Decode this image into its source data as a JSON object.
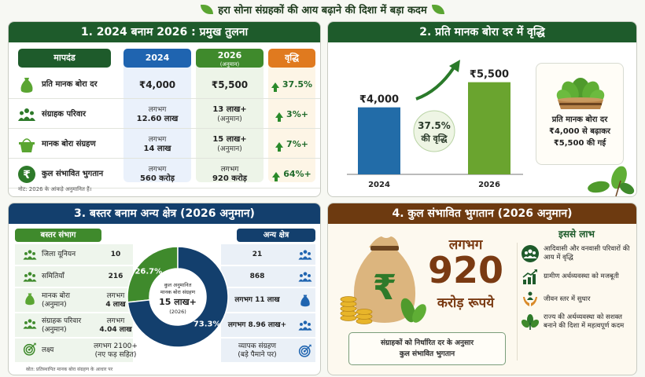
{
  "subtitle": "हरा सोना संग्रहकों की आय बढ़ाने की दिशा में बड़ा कदम",
  "colors": {
    "green_dark": "#1e5b2b",
    "blue": "#1f64b0",
    "green": "#3f8a2c",
    "orange": "#e07a1f",
    "navy": "#133f6d",
    "brown": "#6d3a10",
    "bar_2024": "#226ca8",
    "bar_2026": "#6aa42f"
  },
  "panel1": {
    "title": "1. 2024 बनाम 2026 : प्रमुख तुलना",
    "headers": {
      "metric": "मापदंड",
      "y2024": "2024",
      "y2026": "2026",
      "y2026_sub": "(अनुमान)",
      "growth": "वृद्धि"
    },
    "rows": [
      {
        "icon": "money-bag-icon",
        "label": "प्रति मानक बोरा दर",
        "v2024_top": "",
        "v2024": "₹4,000",
        "v2026_top": "",
        "v2026": "₹5,500",
        "growth": "37.5%"
      },
      {
        "icon": "people-icon",
        "label": "संग्राहक परिवार",
        "v2024_top": "लगभग",
        "v2024": "12.60 लाख",
        "v2026_top": "13 लाख+",
        "v2026": "(अनुमान)",
        "growth": "3%+"
      },
      {
        "icon": "basket-icon",
        "label": "मानक बोरा संग्रहण",
        "v2024_top": "लगभग",
        "v2024": "14 लाख",
        "v2026_top": "15 लाख+",
        "v2026": "(अनुमान)",
        "growth": "7%+"
      },
      {
        "icon": "rupee-icon",
        "label": "कुल संभावित भुगतान",
        "v2024_top": "लगभग",
        "v2024": "560 करोड़",
        "v2026_top": "लगभग",
        "v2026": "920 करोड़",
        "growth": "64%+"
      }
    ],
    "note": "नोट: 2026 के आंकड़े अनुमानित हैं।"
  },
  "panel2": {
    "title": "2. प्रति मानक बोरा दर में वृद्धि",
    "side_text": [
      "प्रति मानक बोरा दर",
      "₹4,000 से बढ़ाकर",
      "₹5,500 की गई"
    ]
  },
  "chart_data": [
    {
      "type": "bar",
      "title": "2. प्रति मानक बोरा दर में वृद्धि",
      "categories": [
        "2024",
        "2026"
      ],
      "values": [
        4000,
        5500
      ],
      "value_labels": [
        "₹4,000",
        "₹5,500"
      ],
      "annotation": [
        "37.5%",
        "की वृद्धि"
      ],
      "ylim": [
        0,
        6000
      ],
      "xlabel": "",
      "ylabel": ""
    },
    {
      "type": "pie",
      "title": "कुल अनुमानित मानक बोरा संग्रहण",
      "categories": [
        "बस्तर संभाग",
        "अन्य क्षेत्र"
      ],
      "values": [
        26.7,
        73.3
      ],
      "value_labels": [
        "26.7%",
        "73.3%"
      ],
      "center_text": [
        "कुल अनुमानित",
        "मानक बोरा संग्रहण",
        "15 लाख+",
        "(2026)"
      ]
    }
  ],
  "panel3": {
    "title": "3. बस्तर बनाम अन्य क्षेत्र (2026 अनुमान)",
    "left_header": "बस्तर संभाग",
    "right_header": "अन्य क्षेत्र",
    "left_rows": [
      {
        "icon": "people-icon",
        "label": "जिला यूनियन",
        "value_top": "",
        "value": "10"
      },
      {
        "icon": "people-icon",
        "label": "समितियाँ",
        "value_top": "",
        "value": "216"
      },
      {
        "icon": "money-bag-icon",
        "label": "मानक बोरा (अनुमान)",
        "value_top": "लगभग",
        "value": "4 लाख"
      },
      {
        "icon": "people-icon",
        "label": "संग्राहक परिवार (अनुमान)",
        "value_top": "लगभग",
        "value": "4.04 लाख"
      },
      {
        "icon": "target-icon",
        "label": "लक्ष्य",
        "value_top": "लगभग 2100+",
        "value": "(नए फड़ सहित)"
      }
    ],
    "right_rows": [
      {
        "icon": "people-icon",
        "value_top": "",
        "value": "21"
      },
      {
        "icon": "people-icon",
        "value_top": "",
        "value": "868"
      },
      {
        "icon": "money-bag-icon",
        "value_top": "",
        "value": "लगभग 11 लाख"
      },
      {
        "icon": "people-icon",
        "value_top": "",
        "value": "लगभग 8.96 लाख+"
      },
      {
        "icon": "target-icon",
        "value_top": "व्यापक संग्रहण",
        "value": "(बड़े पैमाने पर)"
      }
    ],
    "note": "स्रोत: प्रतिस्थापित मानक बोरा संग्रहण के आधार पर"
  },
  "panel4": {
    "title": "4. कुल संभावित भुगतान (2026 अनुमान)",
    "approx": "लगभग",
    "amount": "920",
    "unit": "करोड़ रूपये",
    "box_text": [
      "संग्राहकों को निर्धारित दर के अनुसार",
      "कुल संभावित भुगतान"
    ],
    "benefits_title": "इससे लाभ",
    "benefits": [
      {
        "icon": "community-icon",
        "text": "आदिवासी और वनवासी परिवारों की आय में वृद्धि"
      },
      {
        "icon": "growth-chart-icon",
        "text": "ग्रामीण अर्थव्यवस्था को मजबूती"
      },
      {
        "icon": "care-hands-icon",
        "text": "जीवन स्तर में सुधार"
      },
      {
        "icon": "leaf-icon",
        "text": "राज्य की अर्थव्यवस्था को सशक्त बनाने की दिशा में महत्वपूर्ण कदम"
      }
    ]
  }
}
